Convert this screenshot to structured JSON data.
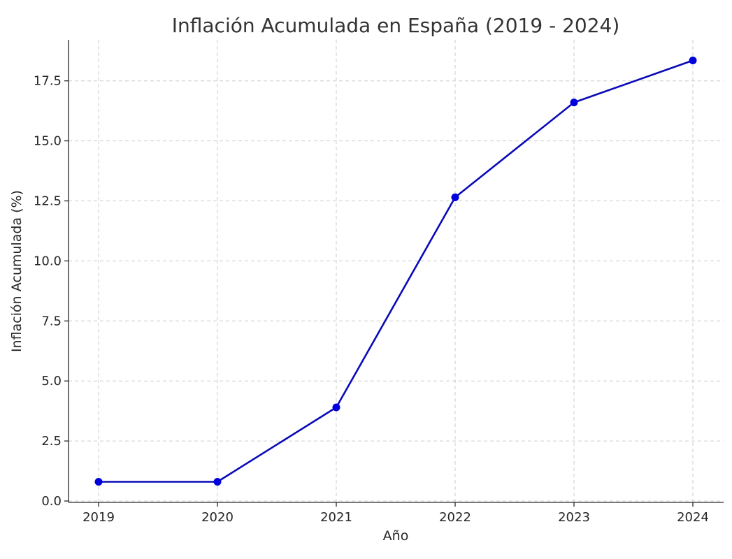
{
  "chart_data": {
    "type": "line",
    "title": "Inflación Acumulada en España (2019 - 2024)",
    "xlabel": "Año",
    "ylabel": "Inflación Acumulada (%)",
    "categories": [
      "2019",
      "2020",
      "2021",
      "2022",
      "2023",
      "2024"
    ],
    "series": [
      {
        "values": [
          0.8,
          0.8,
          3.9,
          12.65,
          16.6,
          18.35
        ]
      }
    ],
    "ylim": [
      0,
      19.2
    ],
    "yticks": [
      "0.0",
      "2.5",
      "5.0",
      "7.5",
      "10.0",
      "12.5",
      "15.0",
      "17.5"
    ],
    "grid": true,
    "color": "#0a0ab8",
    "marker_color": "#0000dd"
  }
}
